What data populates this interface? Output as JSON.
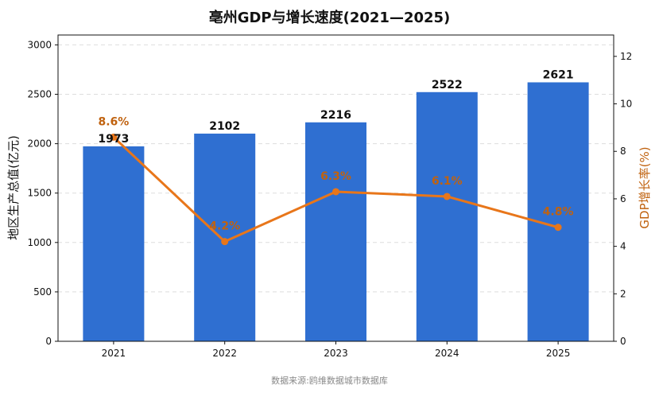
{
  "title": "亳州GDP与增长速度(2021—2025)",
  "source_note": "数据来源:鸥维数据城市数据库",
  "colors": {
    "bar": "#2f6fd1",
    "line": "#e8761a",
    "growth_label": "#c0620f",
    "grid": "#dddddd",
    "right_axis_title": "#c0620f"
  },
  "chart_data": {
    "type": "bar+line",
    "categories": [
      "2021",
      "2022",
      "2023",
      "2024",
      "2025"
    ],
    "series": [
      {
        "name": "地区生产总值(亿元)",
        "type": "bar",
        "axis": "left",
        "values": [
          1973,
          2102,
          2216,
          2522,
          2621
        ],
        "labels": [
          "1973",
          "2102",
          "2216",
          "2522",
          "2621"
        ]
      },
      {
        "name": "GDP增长率(%)",
        "type": "line",
        "axis": "right",
        "values": [
          8.6,
          4.2,
          6.3,
          6.1,
          4.8
        ],
        "labels": [
          "8.6%",
          "4.2%",
          "6.3%",
          "6.1%",
          "4.8%"
        ]
      }
    ],
    "left_axis": {
      "label": "地区生产总值(亿元)",
      "ylim": [
        0,
        3100
      ],
      "ticks": [
        0,
        500,
        1000,
        1500,
        2000,
        2500,
        3000
      ]
    },
    "right_axis": {
      "label": "GDP增长率(%)",
      "ylim": [
        0,
        12.9
      ],
      "ticks": [
        0,
        2,
        4,
        6,
        8,
        10,
        12
      ]
    },
    "grid": true
  }
}
